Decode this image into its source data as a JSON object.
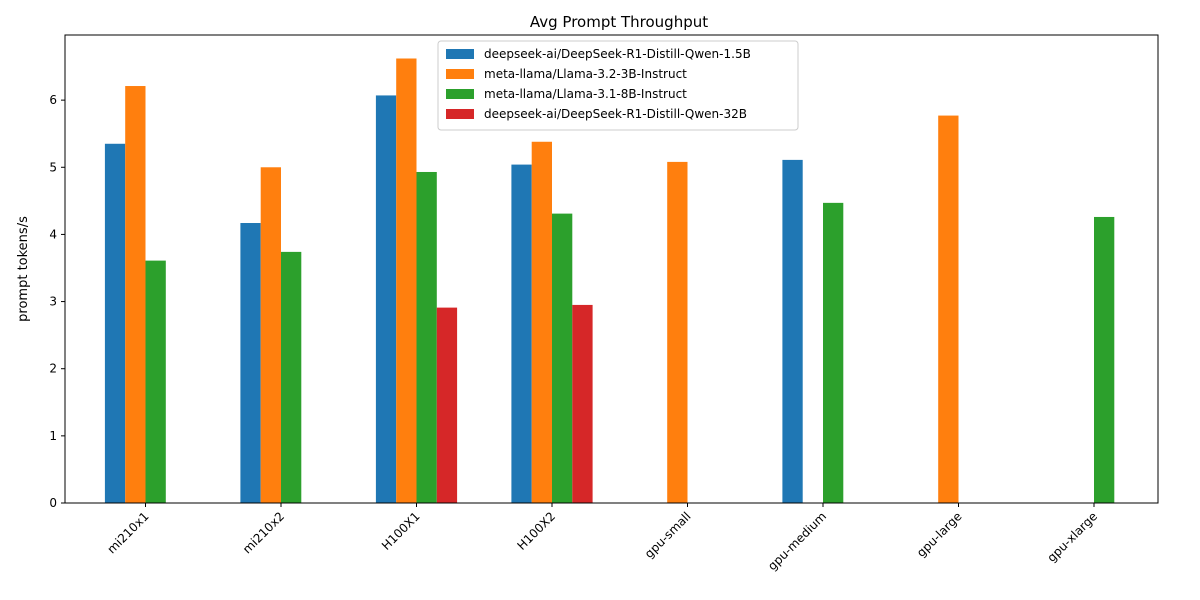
{
  "chart_data": {
    "type": "bar",
    "title": "Avg Prompt Throughput",
    "xlabel": "",
    "ylabel": "prompt tokens/s",
    "ylim": [
      0,
      6.97
    ],
    "yticks": [
      0,
      1,
      2,
      3,
      4,
      5,
      6
    ],
    "ytick_labels": [
      "0",
      "1",
      "2",
      "3",
      "4",
      "5",
      "6"
    ],
    "categories": [
      "mi210x1",
      "mi210x2",
      "H100X1",
      "H100X2",
      "gpu-small",
      "gpu-medium",
      "gpu-large",
      "gpu-xlarge"
    ],
    "legend_position": "top-center",
    "series": [
      {
        "name": "deepseek-ai/DeepSeek-R1-Distill-Qwen-1.5B",
        "color": "#1f77b4",
        "values": [
          5.35,
          4.17,
          6.07,
          5.04,
          null,
          5.11,
          null,
          null
        ]
      },
      {
        "name": "meta-llama/Llama-3.2-3B-Instruct",
        "color": "#ff7f0e",
        "values": [
          6.21,
          5.0,
          6.62,
          5.38,
          5.08,
          null,
          5.77,
          null
        ]
      },
      {
        "name": "meta-llama/Llama-3.1-8B-Instruct",
        "color": "#2ca02c",
        "values": [
          3.61,
          3.74,
          4.93,
          4.31,
          null,
          4.47,
          null,
          4.26
        ]
      },
      {
        "name": "deepseek-ai/DeepSeek-R1-Distill-Qwen-32B",
        "color": "#d62728",
        "values": [
          null,
          null,
          2.91,
          2.95,
          null,
          null,
          null,
          null
        ]
      }
    ]
  }
}
